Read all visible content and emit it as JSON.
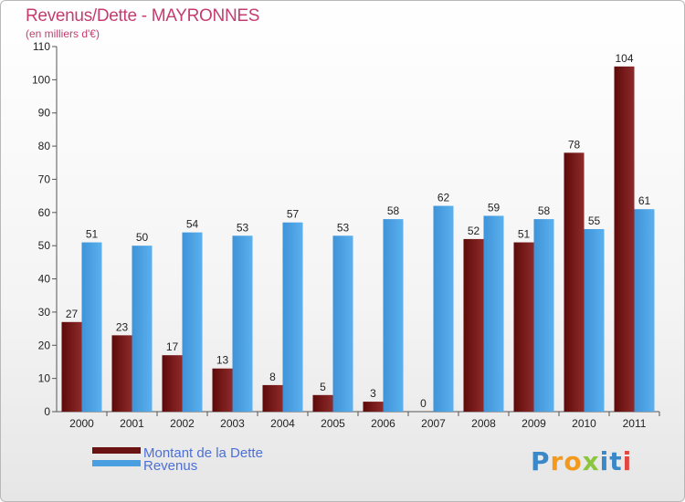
{
  "header": {
    "title": "Revenus/Dette - MAYRONNES",
    "subtitle": "(en milliers d'€)"
  },
  "logo": {
    "text": "Proxiti",
    "letters": [
      "P",
      "r",
      "o",
      "x",
      "i",
      "t",
      "i"
    ],
    "colors": [
      "#3a88c8",
      "#f39a1e",
      "#f39a1e",
      "#8cc63f",
      "#3a88c8",
      "#3a88c8",
      "#e2483f"
    ]
  },
  "chart_data": {
    "type": "bar",
    "categories": [
      "2000",
      "2001",
      "2002",
      "2003",
      "2004",
      "2005",
      "2006",
      "2007",
      "2008",
      "2009",
      "2010",
      "2011"
    ],
    "series": [
      {
        "name": "Montant de la Dette",
        "color": "#7a1a1a",
        "values": [
          27,
          23,
          17,
          13,
          8,
          5,
          3,
          0,
          52,
          51,
          78,
          104
        ]
      },
      {
        "name": "Revenus",
        "color": "#4a9fe0",
        "values": [
          51,
          50,
          54,
          53,
          57,
          53,
          58,
          62,
          59,
          58,
          55,
          61
        ]
      }
    ],
    "ylim": [
      0,
      110
    ],
    "yticks": [
      0,
      10,
      20,
      30,
      40,
      50,
      60,
      70,
      80,
      90,
      100,
      110
    ],
    "grid": false,
    "legend": "bottom-left"
  }
}
